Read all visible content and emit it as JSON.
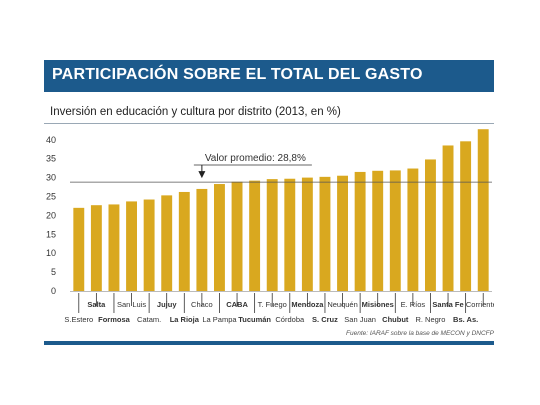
{
  "header": {
    "title": "PARTICIPACIÓN SOBRE EL TOTAL DEL GASTO"
  },
  "source": "Fuente: IARAF sobre la base de MECON y DNCFP",
  "colors": {
    "bar": "#d9a81f",
    "header": "#1c5a8c",
    "average_line": "#555555"
  },
  "chart_data": {
    "type": "bar",
    "title": "Inversión en educación y cultura por distrito (2013, en %)",
    "xlabel": "",
    "ylabel": "",
    "ylim": [
      0,
      45
    ],
    "yticks": [
      0,
      5,
      10,
      15,
      20,
      25,
      30,
      35,
      40
    ],
    "grid": false,
    "categories": [
      "S.Estero",
      "Salta",
      "Formosa",
      "San Luis",
      "Catam.",
      "Jujuy",
      "La Rioja",
      "Chaco",
      "La Pampa",
      "CABA",
      "Tucumán",
      "T. Fuego",
      "Córdoba",
      "Mendoza",
      "S. Cruz",
      "Neuquén",
      "San Juan",
      "Misiones",
      "Chubut",
      "E. Ríos",
      "R. Negro",
      "Santa Fe",
      "Bs. As.",
      "Corrientes"
    ],
    "label_row": [
      "bottom",
      "top",
      "bottom",
      "top",
      "bottom",
      "top",
      "bottom",
      "top",
      "bottom",
      "top",
      "bottom",
      "top",
      "bottom",
      "top",
      "bottom",
      "top",
      "bottom",
      "top",
      "bottom",
      "top",
      "bottom",
      "top",
      "bottom",
      "top"
    ],
    "bold_labels": [
      "Salta",
      "Formosa",
      "Jujuy",
      "La Rioja",
      "CABA",
      "Tucumán",
      "Mendoza",
      "S. Cruz",
      "Misiones",
      "Chubut",
      "Santa Fe",
      "Bs. As."
    ],
    "values": [
      22.0,
      22.7,
      22.9,
      23.7,
      24.2,
      25.3,
      26.2,
      27.0,
      28.3,
      28.9,
      29.2,
      29.6,
      29.7,
      30.0,
      30.2,
      30.5,
      31.5,
      31.8,
      31.9,
      32.4,
      34.8,
      38.5,
      39.6,
      42.8
    ],
    "average": {
      "label": "Valor promedio: 28,8%",
      "value": 28.8
    }
  }
}
